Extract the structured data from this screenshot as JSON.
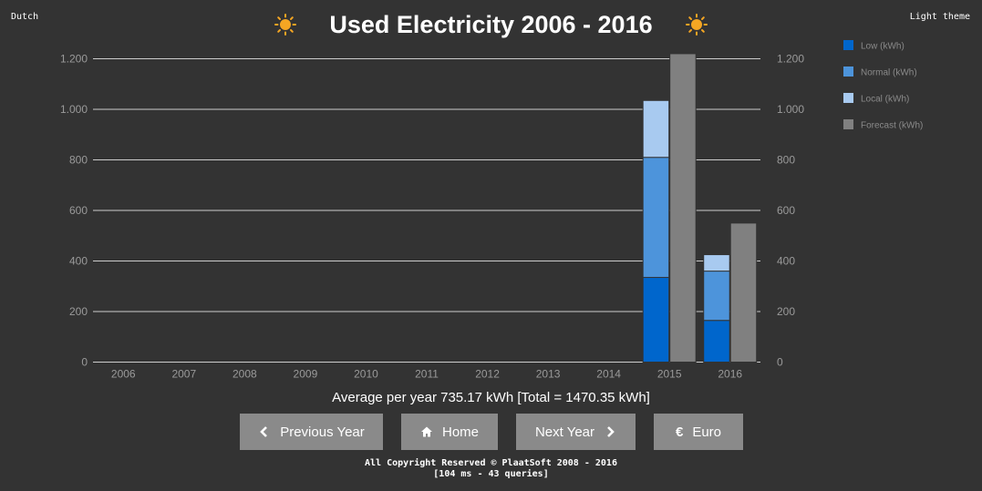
{
  "header": {
    "language_link": "Dutch",
    "theme_link": "Light theme",
    "title": "Used Electricity 2006 - 2016",
    "title_icon": "sun-icon"
  },
  "colors": {
    "background": "#333333",
    "low": "#0066cc",
    "normal": "#4d94db",
    "local": "#a8caf0",
    "forecast": "#808080",
    "grid": "#cccccc",
    "button": "#8a8a8a"
  },
  "chart_data": {
    "type": "bar",
    "stacked": true,
    "categories": [
      "2006",
      "2007",
      "2008",
      "2009",
      "2010",
      "2011",
      "2012",
      "2013",
      "2014",
      "2015",
      "2016"
    ],
    "series": [
      {
        "name": "Low (kWh)",
        "stack": "used",
        "values": [
          0,
          0,
          0,
          0,
          0,
          0,
          0,
          0,
          0,
          335,
          165
        ]
      },
      {
        "name": "Normal (kWh)",
        "stack": "used",
        "values": [
          0,
          0,
          0,
          0,
          0,
          0,
          0,
          0,
          0,
          475,
          195
        ]
      },
      {
        "name": "Local (kWh)",
        "stack": "used",
        "values": [
          0,
          0,
          0,
          0,
          0,
          0,
          0,
          0,
          0,
          225,
          65
        ]
      },
      {
        "name": "Forecast (kWh)",
        "stack": "forecast",
        "values": [
          0,
          0,
          0,
          0,
          0,
          0,
          0,
          0,
          0,
          1220,
          550
        ]
      }
    ],
    "y_ticks": [
      0,
      200,
      400,
      600,
      800,
      1000,
      1200
    ],
    "y_tick_labels": [
      "0",
      "200",
      "400",
      "600",
      "800",
      "1.000",
      "1.200"
    ],
    "ylim": [
      0,
      1200
    ],
    "y_axis_both_sides": true,
    "grid": true,
    "legend_position": "right"
  },
  "summary": {
    "average": "Average per year 735.17 kWh [Total = 1470.35 kWh]"
  },
  "buttons": {
    "previous": "Previous Year",
    "home": "Home",
    "next": "Next Year",
    "euro": "Euro",
    "euro_symbol": "€"
  },
  "footer": {
    "copyright": "All Copyright Reserved © PlaatSoft 2008 - 2016",
    "stats": "[104 ms - 43 queries]"
  }
}
